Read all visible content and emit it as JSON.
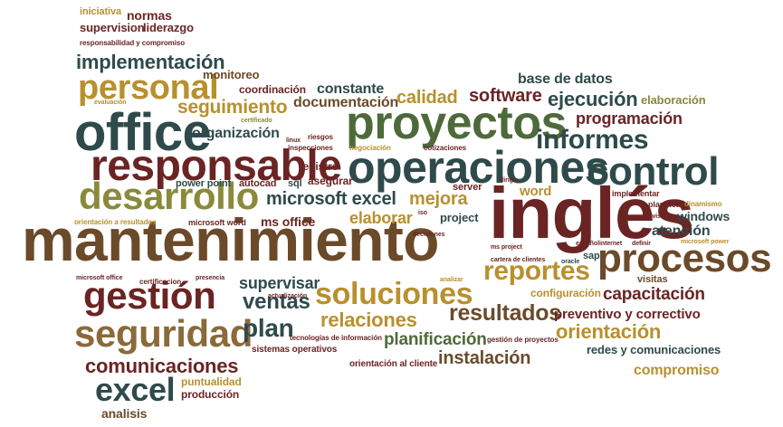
{
  "palette": {
    "maroon": "#6b2424",
    "brown": "#6b4a2a",
    "slate": "#2f4a4a",
    "olive": "#8a8a3a",
    "gold": "#b8902e",
    "tan": "#a08050",
    "green": "#4e6a3a",
    "dark": "#3a3030"
  },
  "words": [
    {
      "text": "mantenimiento",
      "color": "#6b4a2a"
    },
    {
      "text": "inglés",
      "color": "#6b2424"
    },
    {
      "text": "proyectos",
      "color": "#4e6a3a"
    },
    {
      "text": "office",
      "color": "#2f4a4a"
    },
    {
      "text": "operaciones",
      "color": "#2f4a4a"
    },
    {
      "text": "responsable",
      "color": "#6b2424"
    },
    {
      "text": "desarrollo",
      "color": "#8a8a3a"
    },
    {
      "text": "control",
      "color": "#2f4a4a"
    },
    {
      "text": "procesos",
      "color": "#6b4a2a"
    },
    {
      "text": "gestión",
      "color": "#6b2424"
    },
    {
      "text": "seguridad",
      "color": "#8a6a3a"
    },
    {
      "text": "soluciones",
      "color": "#b8902e"
    },
    {
      "text": "personal",
      "color": "#b8902e"
    },
    {
      "text": "excel",
      "color": "#2f4a4a"
    },
    {
      "text": "reportes",
      "color": "#b8902e"
    },
    {
      "text": "informes",
      "color": "#2f4a4a"
    },
    {
      "text": "resultados",
      "color": "#6b4a2a"
    },
    {
      "text": "plan",
      "color": "#2f4a4a"
    },
    {
      "text": "ventas",
      "color": "#2f4a4a"
    },
    {
      "text": "relaciones",
      "color": "#b8902e"
    },
    {
      "text": "implementación",
      "color": "#2f4a4a"
    },
    {
      "text": "seguimiento",
      "color": "#b8902e"
    },
    {
      "text": "comunicaciones",
      "color": "#6b2424"
    },
    {
      "text": "orientación",
      "color": "#b8902e"
    },
    {
      "text": "ejecución",
      "color": "#2f4a4a"
    },
    {
      "text": "software",
      "color": "#6b2424"
    },
    {
      "text": "calidad",
      "color": "#b8902e"
    },
    {
      "text": "microsoft excel",
      "color": "#2f4a4a"
    },
    {
      "text": "mejora",
      "color": "#b8902e"
    },
    {
      "text": "elaborar",
      "color": "#b8902e"
    },
    {
      "text": "instalación",
      "color": "#6b4a2a"
    },
    {
      "text": "planificación",
      "color": "#4e6a3a"
    },
    {
      "text": "capacitación",
      "color": "#6b2424"
    },
    {
      "text": "programación",
      "color": "#6b2424"
    },
    {
      "text": "supervisar",
      "color": "#2f4a4a"
    },
    {
      "text": "organización",
      "color": "#2f4a4a"
    },
    {
      "text": "documentación",
      "color": "#6b4a2a"
    },
    {
      "text": "constante",
      "color": "#2f4a4a"
    },
    {
      "text": "base de datos",
      "color": "#2f4a4a"
    },
    {
      "text": "atención",
      "color": "#2f4a4a"
    },
    {
      "text": "preventivo y correctivo",
      "color": "#6b2424"
    },
    {
      "text": "compromiso",
      "color": "#b8902e"
    },
    {
      "text": "analisis",
      "color": "#6b4a2a"
    },
    {
      "text": "windows",
      "color": "#2f4a4a"
    },
    {
      "text": "word",
      "color": "#b8902e"
    },
    {
      "text": "ms office",
      "color": "#6b2424"
    },
    {
      "text": "redes y comunicaciones",
      "color": "#2f4a4a"
    },
    {
      "text": "elaboración",
      "color": "#8a8a3a"
    },
    {
      "text": "configuración",
      "color": "#b8902e"
    },
    {
      "text": "visitas",
      "color": "#6b4a2a"
    },
    {
      "text": "monitoreo",
      "color": "#6b4a2a"
    },
    {
      "text": "coordinación",
      "color": "#6b2424"
    },
    {
      "text": "registro",
      "color": "#6b2424"
    },
    {
      "text": "asegurar",
      "color": "#6b2424"
    },
    {
      "text": "normas",
      "color": "#6b2424"
    },
    {
      "text": "supervision",
      "color": "#6b2424"
    },
    {
      "text": "liderazgo",
      "color": "#6b2424"
    },
    {
      "text": "iniciativa",
      "color": "#b8902e"
    },
    {
      "text": "autocad",
      "color": "#6b2424"
    },
    {
      "text": "project",
      "color": "#2f4a4a"
    },
    {
      "text": "puntualidad",
      "color": "#b8902e"
    },
    {
      "text": "producción",
      "color": "#6b2424"
    },
    {
      "text": "power point",
      "color": "#2f4a4a"
    },
    {
      "text": "sql",
      "color": "#2f4a4a"
    },
    {
      "text": "server",
      "color": "#6b2424"
    },
    {
      "text": "sap",
      "color": "#2f4a4a"
    },
    {
      "text": "microsoft word",
      "color": "#6b2424"
    },
    {
      "text": "sistemas operativos",
      "color": "#6b2424"
    },
    {
      "text": "tecnologías de información",
      "color": "#6b2424"
    },
    {
      "text": "orientación al cliente",
      "color": "#6b2424"
    },
    {
      "text": "gestión de proyectos",
      "color": "#6b2424"
    },
    {
      "text": "implementar",
      "color": "#6b2424"
    },
    {
      "text": "planificar",
      "color": "#6b2424"
    },
    {
      "text": "dinamismo",
      "color": "#b8902e"
    },
    {
      "text": "responsabilidad y compromiso",
      "color": "#6b2424"
    },
    {
      "text": "evaluación",
      "color": "#b8902e"
    },
    {
      "text": "certificado",
      "color": "#8a8a3a"
    },
    {
      "text": "riesgos",
      "color": "#6b2424"
    },
    {
      "text": "linux",
      "color": "#6b2424"
    },
    {
      "text": "inspecciones",
      "color": "#6b2424"
    },
    {
      "text": "negociación",
      "color": "#b8902e"
    },
    {
      "text": "cotizaciones",
      "color": "#6b2424"
    },
    {
      "text": "decisiones",
      "color": "#6b2424"
    },
    {
      "text": "ms project",
      "color": "#6b2424"
    },
    {
      "text": "cartera de clientes",
      "color": "#6b2424"
    },
    {
      "text": "oracle",
      "color": "#2f4a4a"
    },
    {
      "text": "español",
      "color": "#6b2424"
    },
    {
      "text": "internet",
      "color": "#6b2424"
    },
    {
      "text": "definir",
      "color": "#6b2424"
    },
    {
      "text": "revisión",
      "color": "#6b2424"
    },
    {
      "text": "microsoft power",
      "color": "#b8902e"
    },
    {
      "text": "dirigir",
      "color": "#6b2424"
    },
    {
      "text": "iso",
      "color": "#6b2424"
    },
    {
      "text": "orientación a resultados",
      "color": "#b8902e"
    },
    {
      "text": "microsoft office",
      "color": "#6b2424"
    },
    {
      "text": "certificacion",
      "color": "#6b2424"
    },
    {
      "text": "presencia",
      "color": "#6b2424"
    },
    {
      "text": "actualización",
      "color": "#6b2424"
    },
    {
      "text": "analizar",
      "color": "#b8902e"
    }
  ]
}
